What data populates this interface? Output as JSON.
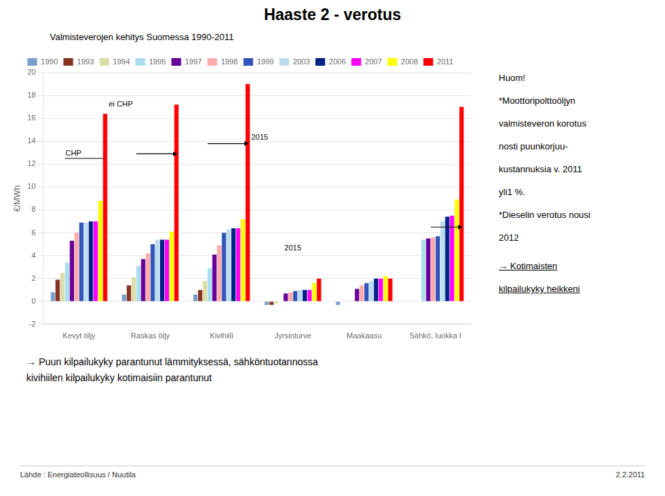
{
  "chart_data": {
    "type": "bar",
    "title": "Haaste 2 - verotus",
    "subtitle": "Valmisteverojen kehitys Suomessa 1990-2011",
    "ylabel": "€/MWh",
    "categories": [
      "Kevyt öljy",
      "Raskas öljy",
      "Kivihiili",
      "Jyrsinturve",
      "Maakaasu",
      "Sähkö, luokka I"
    ],
    "series": [
      {
        "name": "1990",
        "color": "#7B9FCC",
        "values": [
          0.8,
          0.6,
          0.6,
          -0.3,
          -0.3,
          0.0
        ]
      },
      {
        "name": "1993",
        "color": "#883322",
        "values": [
          1.9,
          1.4,
          1.0,
          -0.3,
          0.0,
          0.0
        ]
      },
      {
        "name": "1994",
        "color": "#DDDDAA",
        "values": [
          2.5,
          2.1,
          1.8,
          -0.2,
          0.0,
          0.0
        ]
      },
      {
        "name": "1995",
        "color": "#AADDEE",
        "values": [
          3.4,
          3.1,
          2.9,
          0.0,
          0.0,
          5.4
        ]
      },
      {
        "name": "1997",
        "color": "#660099",
        "values": [
          5.3,
          3.7,
          4.1,
          0.7,
          1.1,
          5.5
        ]
      },
      {
        "name": "1998",
        "color": "#FFAAAA",
        "values": [
          6.0,
          4.2,
          4.9,
          0.8,
          1.4,
          5.6
        ]
      },
      {
        "name": "1999",
        "color": "#3355BB",
        "values": [
          6.9,
          5.0,
          6.0,
          0.9,
          1.6,
          5.7
        ]
      },
      {
        "name": "2003",
        "color": "#BBDDEE",
        "values": [
          6.9,
          5.4,
          6.3,
          1.0,
          1.8,
          7.0
        ]
      },
      {
        "name": "2006",
        "color": "#002288",
        "values": [
          7.0,
          5.4,
          6.4,
          1.0,
          2.0,
          7.4
        ]
      },
      {
        "name": "2007",
        "color": "#FF00FF",
        "values": [
          7.0,
          5.4,
          6.4,
          1.0,
          2.0,
          7.5
        ]
      },
      {
        "name": "2008",
        "color": "#FFFF00",
        "values": [
          8.8,
          6.1,
          7.2,
          1.6,
          2.2,
          8.9
        ]
      },
      {
        "name": "2011",
        "color": "#FF0000",
        "values": [
          16.4,
          17.2,
          19.0,
          2.0,
          2.0,
          17.0
        ]
      }
    ],
    "ylim": [
      -2,
      20
    ],
    "yticks": [
      -2,
      0,
      2,
      4,
      6,
      8,
      10,
      12,
      14,
      16,
      18,
      20
    ],
    "grid": true,
    "legend": "top",
    "annotations": [
      {
        "text": "ei CHP",
        "category": "Kevyt öljy",
        "series": "2011",
        "y": 16.9
      },
      {
        "text": "2015",
        "category": "Kivihiili",
        "series": "2011",
        "y": 14.0
      },
      {
        "text": "2015",
        "category": "Jyrsinturve",
        "y": 4.3
      }
    ],
    "lines": [
      {
        "category": "Kevyt öljy",
        "from": "1995",
        "to": "2011",
        "y": 12.5,
        "label": "CHP"
      },
      {
        "category": "Raskas öljy",
        "from": "1995",
        "to": "2011",
        "y": 12.9,
        "arrow": true
      },
      {
        "category": "Kivihiili",
        "from": "1995",
        "to": "2011",
        "y": 13.8,
        "arrow": true
      },
      {
        "category": "Sähkö, luokka I",
        "from": "1998",
        "to": "2011",
        "y": 6.5,
        "arrow": true
      }
    ],
    "right_note": [
      "Huom!",
      "*Moottoripolttoöljyn",
      "valmisteveron korotus",
      "nosti puunkorjuu-",
      "kustannuksia v. 2011",
      "yli1 %.",
      "*Dieselin verotus nousi",
      "2012"
    ],
    "right_note_underlined": [
      "→ Kotimaisten",
      "kilpailukyky heikkeni"
    ],
    "bottom_note": [
      "→ Puun kilpailukyky parantunut lämmityksessä, sähköntuotannossa",
      "kivihiilen kilpailukyky kotimaisiin parantunut"
    ],
    "source": "Lähde : Energiateollisuus / Nuutila",
    "date": "2.2.2011"
  }
}
